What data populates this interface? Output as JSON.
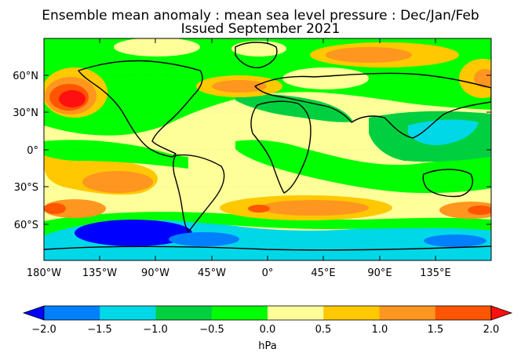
{
  "title_line1": "Ensemble mean anomaly : mean sea level pressure : Dec/Jan/Feb",
  "title_line2": "Issued September 2021",
  "map": {
    "lat_labels": [
      "60°N",
      "30°N",
      "0°",
      "30°S",
      "60°S"
    ],
    "lon_labels": [
      "180°W",
      "135°W",
      "90°W",
      "45°W",
      "0°",
      "45°E",
      "90°E",
      "135°E"
    ]
  },
  "colorbar": {
    "tick_labels": [
      "−2.0",
      "−1.5",
      "−1.0",
      "−0.5",
      "0.0",
      "0.5",
      "1.0",
      "1.5",
      "2.0"
    ],
    "unit": "hPa",
    "colors": [
      "#0000ff",
      "#0080ff",
      "#00d8e8",
      "#00d040",
      "#00ff00",
      "#ffff99",
      "#ffc800",
      "#ff9620",
      "#ff5500",
      "#ff1010"
    ]
  }
}
